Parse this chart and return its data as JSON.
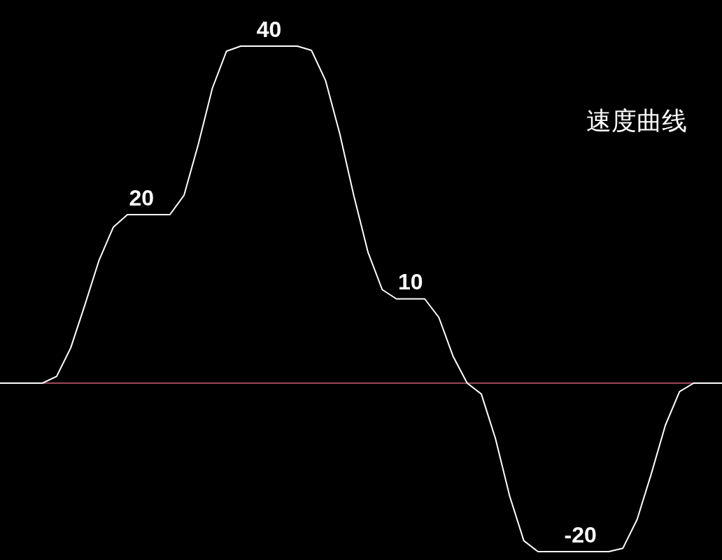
{
  "chart_data": {
    "type": "line",
    "title": "速度曲线",
    "categories": [
      null,
      null,
      null,
      null,
      null,
      null,
      null,
      null,
      null,
      null,
      null,
      null,
      null,
      null,
      null,
      null,
      null,
      null,
      null,
      null,
      null,
      null,
      null,
      null,
      null,
      null,
      null,
      null,
      null,
      null,
      null,
      null,
      null,
      null,
      null,
      null,
      null,
      null,
      null,
      null,
      null,
      null,
      null,
      null,
      null,
      null,
      null,
      null,
      null,
      null,
      null,
      null
    ],
    "series": [
      {
        "color": "#ffffff",
        "values": [
          0,
          0,
          0,
          0,
          0.8,
          4.2,
          9.3,
          14.6,
          18.5,
          20,
          20,
          20,
          20,
          22.3,
          28.3,
          35,
          39.4,
          40,
          40,
          40,
          40,
          40,
          39.5,
          35.9,
          29.6,
          22.2,
          15.5,
          11.1,
          10,
          10,
          10,
          7.8,
          3.2,
          0,
          -1.3,
          -6.6,
          -13.4,
          -18.7,
          -20,
          -20,
          -20,
          -20,
          -20,
          -20,
          -19.6,
          -16.2,
          -10.8,
          -5,
          -1,
          0,
          0,
          0
        ],
        "value_labels": [
          null,
          null,
          null,
          null,
          null,
          null,
          null,
          null,
          null,
          null,
          "20",
          null,
          null,
          null,
          null,
          null,
          null,
          null,
          null,
          "40",
          null,
          null,
          null,
          null,
          null,
          null,
          null,
          null,
          null,
          "10",
          null,
          null,
          null,
          null,
          null,
          null,
          null,
          null,
          null,
          null,
          null,
          "-20",
          null,
          null,
          null,
          null,
          null,
          null,
          null,
          null,
          null,
          null
        ]
      }
    ],
    "legend": false,
    "marker": "none",
    "line_style": "solid",
    "ref_lines": [
      {
        "axis": "y",
        "value": 0,
        "color": "#d0607a"
      }
    ]
  }
}
